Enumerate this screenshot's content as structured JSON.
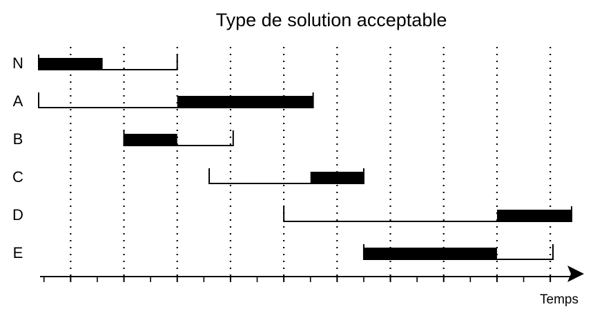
{
  "title": "Type de solution acceptable",
  "axis": {
    "label": "Temps"
  },
  "chart_data": {
    "type": "gantt",
    "time_range": [
      0,
      10
    ],
    "gridlines_at": [
      0.6,
      1.6,
      2.6,
      3.6,
      4.6,
      5.6,
      6.6,
      7.6,
      8.6,
      9.6
    ],
    "rows": [
      {
        "label": "N",
        "window": [
          0,
          2.6
        ],
        "solution": [
          0,
          1.2
        ]
      },
      {
        "label": "A",
        "window": [
          0,
          5.15
        ],
        "solution": [
          2.6,
          5.15
        ]
      },
      {
        "label": "B",
        "window": [
          1.6,
          3.65
        ],
        "solution": [
          1.6,
          2.6
        ]
      },
      {
        "label": "C",
        "window": [
          3.2,
          6.1
        ],
        "solution": [
          5.1,
          6.1
        ]
      },
      {
        "label": "D",
        "window": [
          4.6,
          10.0
        ],
        "solution": [
          8.6,
          10.0
        ]
      },
      {
        "label": "E",
        "window": [
          6.1,
          9.65
        ],
        "solution": [
          6.1,
          8.6
        ]
      }
    ]
  }
}
